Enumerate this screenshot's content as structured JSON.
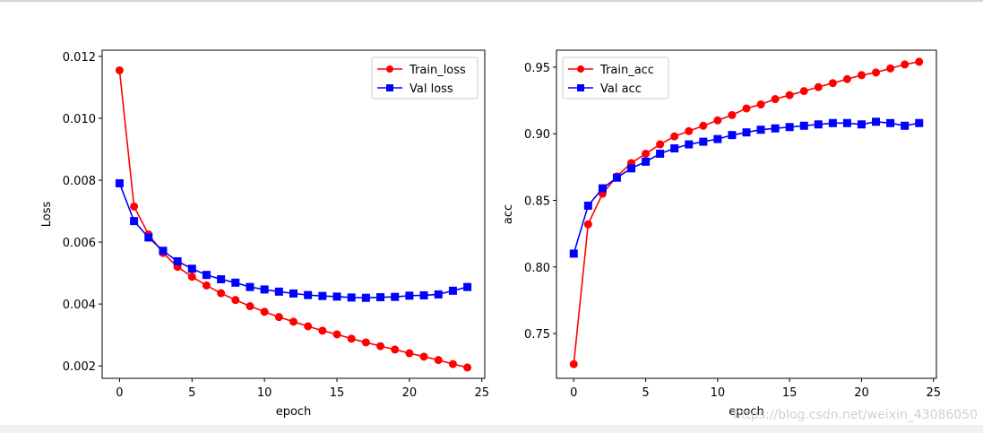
{
  "chart_data": [
    {
      "type": "line",
      "title": "",
      "xlabel": "epoch",
      "ylabel": "Loss",
      "xlim": [
        -1.2,
        25.2
      ],
      "ylim": [
        0.0016,
        0.0122
      ],
      "xticks": [
        0,
        5,
        10,
        15,
        20,
        25
      ],
      "xtick_labels": [
        "0",
        "5",
        "10",
        "15",
        "20",
        "25"
      ],
      "yticks": [
        0.002,
        0.004,
        0.006,
        0.008,
        0.01,
        0.012
      ],
      "ytick_labels": [
        "0.002",
        "0.004",
        "0.006",
        "0.008",
        "0.010",
        "0.012"
      ],
      "legend_position": "top-right",
      "x": [
        0,
        1,
        2,
        3,
        4,
        5,
        6,
        7,
        8,
        9,
        10,
        11,
        12,
        13,
        14,
        15,
        16,
        17,
        18,
        19,
        20,
        21,
        22,
        23,
        24
      ],
      "series": [
        {
          "name": "Train_loss",
          "color": "#ff0000",
          "marker": "circle",
          "values": [
            0.01155,
            0.00715,
            0.00625,
            0.00565,
            0.0052,
            0.00488,
            0.0046,
            0.00435,
            0.00413,
            0.00393,
            0.00375,
            0.00358,
            0.00343,
            0.00328,
            0.00314,
            0.00302,
            0.00288,
            0.00276,
            0.00264,
            0.00253,
            0.00241,
            0.0023,
            0.00219,
            0.00206,
            0.00195
          ]
        },
        {
          "name": "Val loss",
          "color": "#0000ff",
          "marker": "square",
          "values": [
            0.0079,
            0.00668,
            0.00615,
            0.00572,
            0.00538,
            0.00514,
            0.00494,
            0.0048,
            0.00469,
            0.00455,
            0.00447,
            0.0044,
            0.00434,
            0.00429,
            0.00426,
            0.00424,
            0.00421,
            0.0042,
            0.00422,
            0.00423,
            0.00427,
            0.00428,
            0.00431,
            0.00443,
            0.00455
          ]
        }
      ]
    },
    {
      "type": "line",
      "title": "",
      "xlabel": "epoch",
      "ylabel": "acc",
      "xlim": [
        -1.2,
        25.2
      ],
      "ylim": [
        0.7164,
        0.9627
      ],
      "xticks": [
        0,
        5,
        10,
        15,
        20,
        25
      ],
      "xtick_labels": [
        "0",
        "5",
        "10",
        "15",
        "20",
        "25"
      ],
      "yticks": [
        0.75,
        0.8,
        0.85,
        0.9,
        0.95
      ],
      "ytick_labels": [
        "0.75",
        "0.80",
        "0.85",
        "0.90",
        "0.95"
      ],
      "legend_position": "top-left",
      "x": [
        0,
        1,
        2,
        3,
        4,
        5,
        6,
        7,
        8,
        9,
        10,
        11,
        12,
        13,
        14,
        15,
        16,
        17,
        18,
        19,
        20,
        21,
        22,
        23,
        24
      ],
      "series": [
        {
          "name": "Train_acc",
          "color": "#ff0000",
          "marker": "circle",
          "values": [
            0.727,
            0.832,
            0.855,
            0.868,
            0.878,
            0.885,
            0.892,
            0.898,
            0.902,
            0.906,
            0.91,
            0.914,
            0.919,
            0.922,
            0.926,
            0.929,
            0.932,
            0.935,
            0.938,
            0.941,
            0.944,
            0.946,
            0.949,
            0.952,
            0.954
          ]
        },
        {
          "name": "Val acc",
          "color": "#0000ff",
          "marker": "square",
          "values": [
            0.81,
            0.846,
            0.859,
            0.867,
            0.874,
            0.879,
            0.885,
            0.889,
            0.892,
            0.894,
            0.896,
            0.899,
            0.901,
            0.903,
            0.904,
            0.905,
            0.906,
            0.907,
            0.908,
            0.908,
            0.907,
            0.909,
            0.908,
            0.906,
            0.908
          ]
        }
      ]
    }
  ],
  "watermark": "https://blog.csdn.net/weixin_43086050"
}
